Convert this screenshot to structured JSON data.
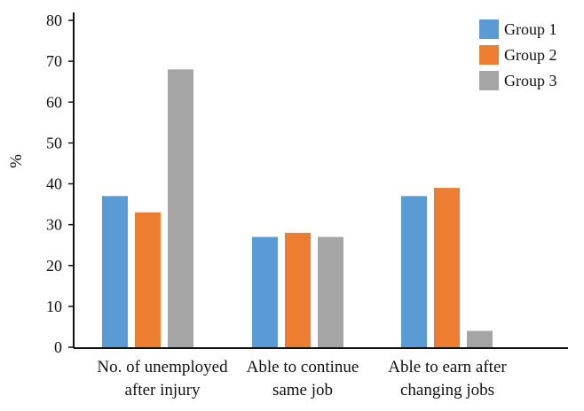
{
  "chart_data": {
    "type": "bar",
    "title": "",
    "xlabel": "",
    "ylabel": "%",
    "ylim": [
      0,
      80
    ],
    "yticks": [
      0,
      10,
      20,
      30,
      40,
      50,
      60,
      70,
      80
    ],
    "grid": false,
    "legend_position": "top-right",
    "categories": [
      [
        "No. of unemployed",
        "after injury"
      ],
      [
        "Able to continue",
        "same job"
      ],
      [
        "Able to earn after",
        "changing jobs"
      ]
    ],
    "series": [
      {
        "name": "Group 1",
        "color": "#5b9bd5",
        "values": [
          37,
          27,
          37
        ]
      },
      {
        "name": "Group 2",
        "color": "#ed7d31",
        "values": [
          33,
          28,
          39
        ]
      },
      {
        "name": "Group 3",
        "color": "#a5a5a5",
        "values": [
          68,
          27,
          4
        ]
      }
    ]
  }
}
